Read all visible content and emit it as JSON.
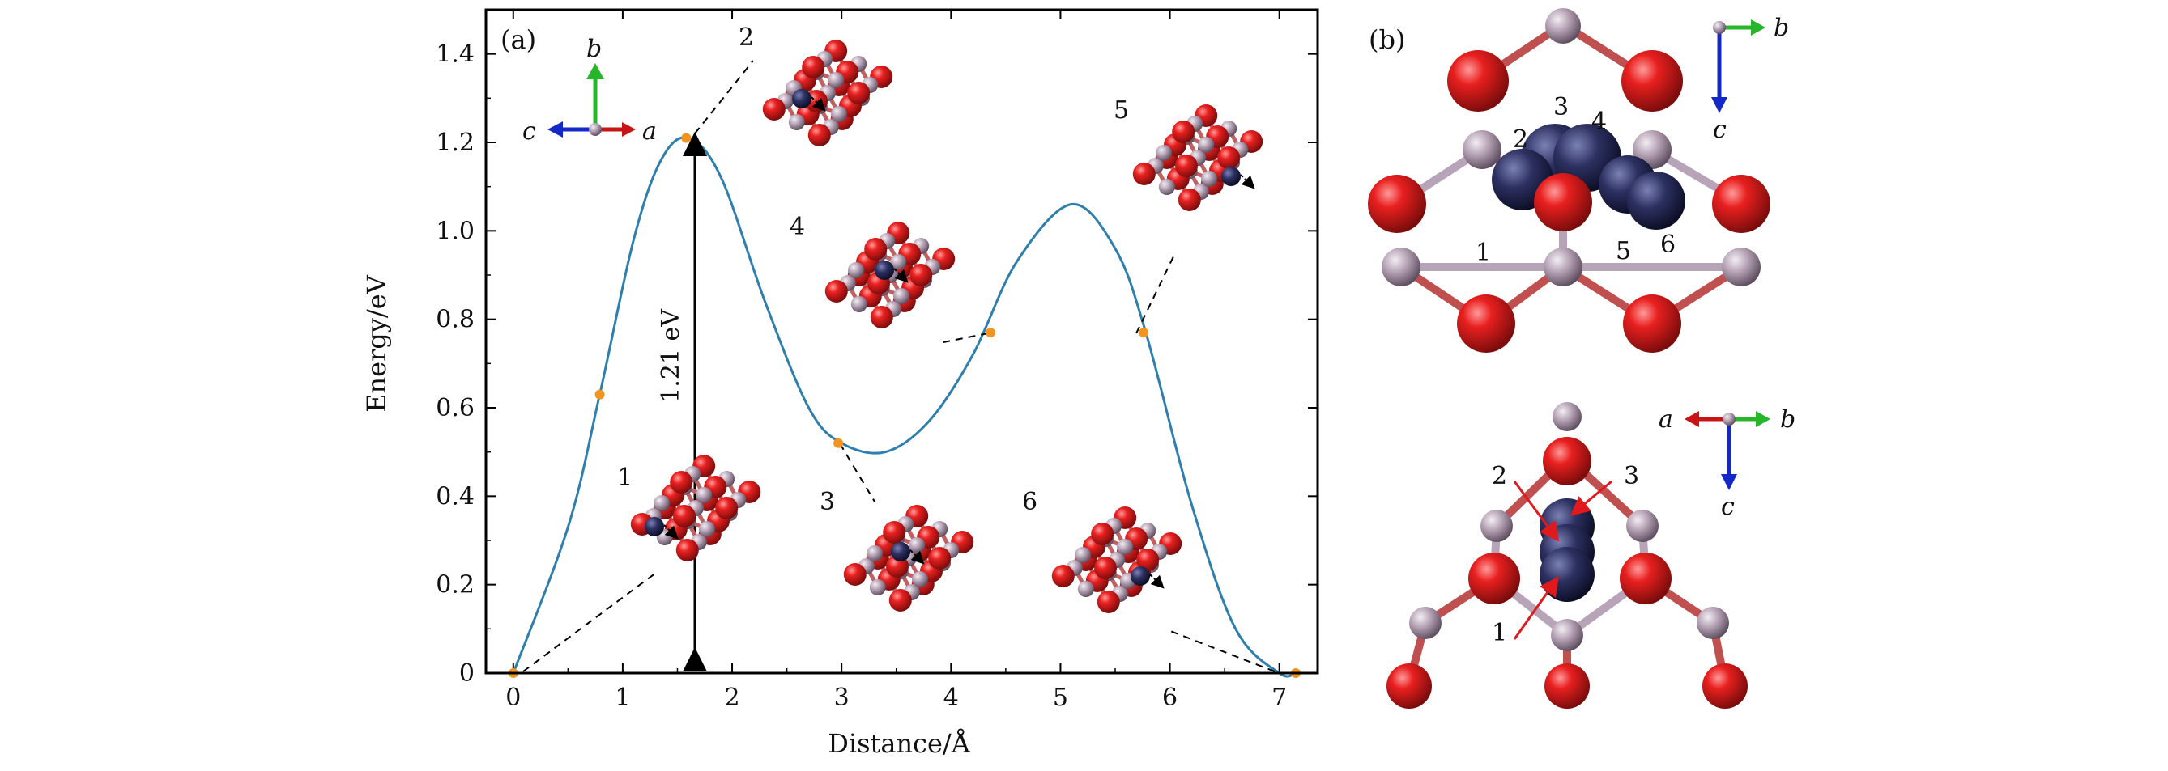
{
  "panel_a": {
    "label": "(a)",
    "energy_annotation": "1.21 eV",
    "axis_labels": {
      "a": "a",
      "b": "b",
      "c": "c"
    },
    "inset_labels": [
      "1",
      "2",
      "3",
      "4",
      "5",
      "6"
    ]
  },
  "panel_b": {
    "label": "(b)",
    "top_axis_labels": {
      "b": "b",
      "c": "c"
    },
    "bottom_axis_labels": {
      "a": "a",
      "b": "b",
      "c": "c"
    },
    "top_site_labels": [
      "1",
      "2",
      "3",
      "4",
      "5",
      "6"
    ],
    "bottom_site_labels": [
      "1",
      "2",
      "3"
    ]
  },
  "colors": {
    "curve": "#2e7fae",
    "points": "#f39320",
    "oxygen": "#e0191c",
    "metal": "#b8a4b8",
    "ion": "#25294f"
  },
  "chart_data": {
    "type": "line",
    "xlabel": "Distance/Å",
    "ylabel": "Energy/eV",
    "xlim": [
      -0.25,
      7.35
    ],
    "ylim": [
      0,
      1.5
    ],
    "xticks": [
      0,
      1,
      2,
      3,
      4,
      5,
      6,
      7
    ],
    "yticks": [
      0,
      0.2,
      0.4,
      0.6,
      0.8,
      1.0,
      1.2,
      1.4
    ],
    "ytick_labels": [
      "0",
      "0.2",
      "0.4",
      "0.6",
      "0.8",
      "1.0",
      "1.2",
      "1.4"
    ],
    "grid": false,
    "series": [
      {
        "kind": "curve",
        "x": [
          0,
          0.5,
          0.79,
          1.1,
          1.35,
          1.6,
          1.9,
          2.3,
          2.7,
          3.0,
          3.4,
          3.8,
          4.2,
          4.6,
          5.1,
          5.5,
          5.78,
          6.2,
          6.6,
          7.0,
          7.15
        ],
        "y": [
          0,
          0.33,
          0.63,
          0.98,
          1.16,
          1.21,
          1.12,
          0.84,
          0.6,
          0.52,
          0.5,
          0.57,
          0.72,
          0.93,
          1.06,
          0.96,
          0.77,
          0.38,
          0.1,
          0.0,
          0.0
        ]
      },
      {
        "kind": "points",
        "x": [
          0,
          0.79,
          1.58,
          2.97,
          4.36,
          5.76,
          7.15
        ],
        "y": [
          0,
          0.63,
          1.21,
          0.52,
          0.77,
          0.77,
          0
        ]
      }
    ]
  }
}
